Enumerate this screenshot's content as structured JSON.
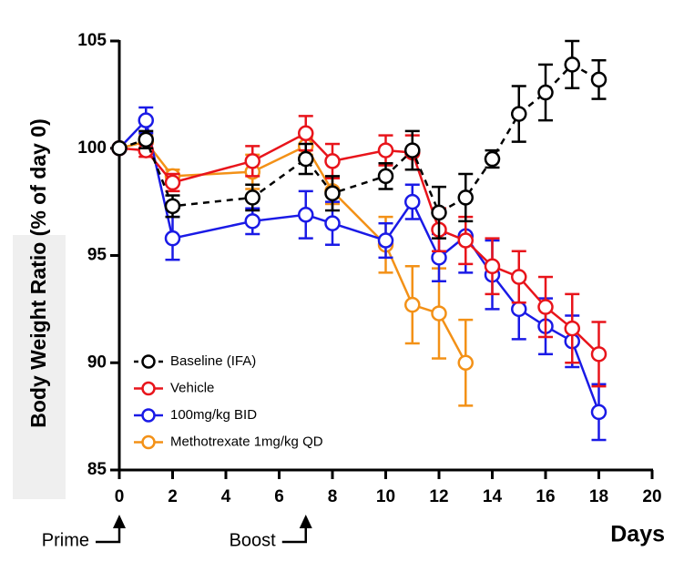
{
  "chart_data": {
    "type": "line",
    "ylabel": "Body Weight Ratio  (% of day 0)",
    "xlabel": "Days",
    "xlim": [
      0,
      20
    ],
    "xticks": [
      0,
      2,
      4,
      6,
      8,
      10,
      12,
      14,
      16,
      18,
      20
    ],
    "ylim": [
      85,
      105
    ],
    "yticks": [
      85,
      90,
      95,
      100,
      105
    ],
    "legend": "lower left",
    "series": [
      {
        "name": "Baseline (IFA)",
        "color": "#000000",
        "line_style": "dashed",
        "x": [
          0,
          1,
          2,
          5,
          7,
          8,
          10,
          11,
          12,
          13,
          14,
          15,
          16,
          17,
          18
        ],
        "values": [
          100,
          100.4,
          97.3,
          97.7,
          99.5,
          97.9,
          98.7,
          99.9,
          97.0,
          97.7,
          99.5,
          101.6,
          102.6,
          103.9,
          103.2
        ],
        "errors": [
          0,
          0.4,
          0.5,
          0.6,
          0.7,
          0.8,
          0.6,
          0.9,
          1.2,
          1.1,
          0.4,
          1.3,
          1.3,
          1.1,
          0.9
        ]
      },
      {
        "name": "Vehicle",
        "color": "#e8141b",
        "line_style": "solid",
        "x": [
          0,
          1,
          2,
          5,
          7,
          8,
          10,
          11,
          12,
          13,
          14,
          15,
          16,
          17,
          18
        ],
        "values": [
          100,
          99.9,
          98.4,
          99.4,
          100.7,
          99.4,
          99.9,
          99.8,
          96.2,
          95.7,
          94.5,
          94.0,
          92.6,
          91.6,
          90.4
        ],
        "errors": [
          0,
          0.3,
          0.4,
          0.7,
          0.8,
          0.8,
          0.7,
          0.8,
          1.0,
          1.1,
          1.3,
          1.2,
          1.4,
          1.6,
          1.5
        ]
      },
      {
        "name": "100mg/kg BID",
        "color": "#1a1ae6",
        "line_style": "solid",
        "x": [
          0,
          1,
          2,
          5,
          7,
          8,
          10,
          11,
          12,
          13,
          14,
          15,
          16,
          17,
          18
        ],
        "values": [
          100,
          101.3,
          95.8,
          96.6,
          96.9,
          96.5,
          95.7,
          97.5,
          94.9,
          95.9,
          94.1,
          92.5,
          91.7,
          91.0,
          87.7
        ],
        "errors": [
          0,
          0.6,
          1.0,
          0.6,
          1.1,
          1.0,
          0.8,
          0.8,
          1.1,
          1.7,
          1.6,
          1.4,
          1.3,
          1.2,
          1.3
        ]
      },
      {
        "name": "Methotrexate 1mg/kg QD",
        "color": "#f39117",
        "line_style": "solid",
        "x": [
          0,
          1,
          2,
          5,
          7,
          8,
          10,
          11,
          12,
          13
        ],
        "values": [
          100,
          100.3,
          98.7,
          98.9,
          100.1,
          98.0,
          95.5,
          92.7,
          92.3,
          90.0
        ],
        "errors": [
          0,
          0.3,
          0.3,
          0.8,
          0.4,
          0.6,
          1.3,
          1.8,
          2.1,
          2.0
        ]
      }
    ],
    "annotations": [
      {
        "text": "Prime",
        "x": 0
      },
      {
        "text": "Boost",
        "x": 7
      }
    ]
  }
}
